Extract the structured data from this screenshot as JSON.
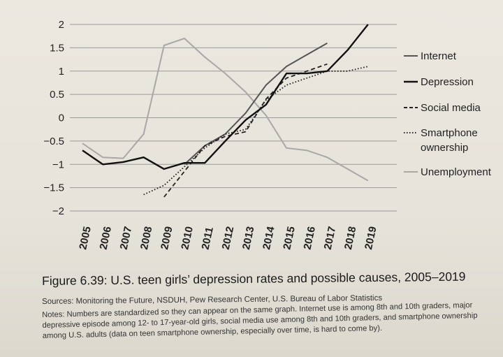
{
  "chart_data": {
    "type": "line",
    "categories": [
      "2005",
      "2006",
      "2007",
      "2008",
      "2009",
      "2010",
      "2011",
      "2012",
      "2013",
      "2014",
      "2015",
      "2016",
      "2017",
      "2018",
      "2019"
    ],
    "ylim": [
      -2,
      2
    ],
    "yticks": [
      2,
      1.5,
      1,
      0.5,
      0,
      -0.5,
      -1,
      -1.5,
      -2
    ],
    "ytick_labels": [
      "2",
      "1.5",
      "1",
      "0.5",
      "0",
      "−0.5",
      "−1",
      "−1.5",
      "−2"
    ],
    "grid": "horizontal",
    "legend_position": "right",
    "series": [
      {
        "name": "Internet",
        "style": "solid",
        "color": "#555555",
        "values": [
          null,
          null,
          null,
          null,
          null,
          -1.0,
          -0.6,
          -0.35,
          0.1,
          0.7,
          1.1,
          1.35,
          1.6,
          null,
          null
        ]
      },
      {
        "name": "Depression",
        "style": "solid",
        "color": "#111111",
        "values": [
          -0.7,
          -1.0,
          -0.95,
          -0.85,
          -1.1,
          -0.97,
          -0.97,
          -0.5,
          -0.05,
          0.28,
          0.95,
          0.95,
          1.0,
          1.45,
          2.0
        ]
      },
      {
        "name": "Social media",
        "style": "dashed",
        "color": "#222222",
        "values": [
          null,
          null,
          null,
          null,
          -1.7,
          -1.15,
          -0.6,
          -0.4,
          -0.3,
          0.4,
          0.85,
          1.0,
          1.15,
          null,
          null
        ]
      },
      {
        "name": "Smartphone ownership",
        "style": "dotted",
        "color": "#222222",
        "values": [
          null,
          null,
          null,
          -1.65,
          -1.45,
          -1.05,
          -0.65,
          -0.35,
          -0.25,
          0.38,
          0.7,
          0.85,
          1.0,
          1.0,
          1.1
        ]
      },
      {
        "name": "Unemployment",
        "style": "solid",
        "color": "#a8a8a8",
        "values": [
          -0.55,
          -0.85,
          -0.87,
          -0.35,
          1.55,
          1.7,
          1.3,
          0.95,
          0.55,
          0.05,
          -0.65,
          -0.7,
          -0.85,
          -1.1,
          -1.35
        ]
      }
    ]
  },
  "legend": {
    "internet": "Internet",
    "depression": "Depression",
    "social_media": "Social media",
    "smartphone_line1": "Smartphone",
    "smartphone_line2": "ownership",
    "unemployment": "Unemployment"
  },
  "caption": "Figure 6.39: U.S. teen girls’ depression rates and possible causes, 2005–2019",
  "sources": "Sources: Monitoring the Future, NSDUH, Pew Research Center, U.S. Bureau of Labor Statistics",
  "notes": "Notes: Numbers are standardized so they can appear on the same graph. Internet use is among 8th and 10th graders, major depressive episode among 12- to 17-year-old girls, social media use among 8th and 10th graders, and smartphone ownership among U.S. adults (data on teen smartphone ownership, especially over time, is hard to come by)."
}
